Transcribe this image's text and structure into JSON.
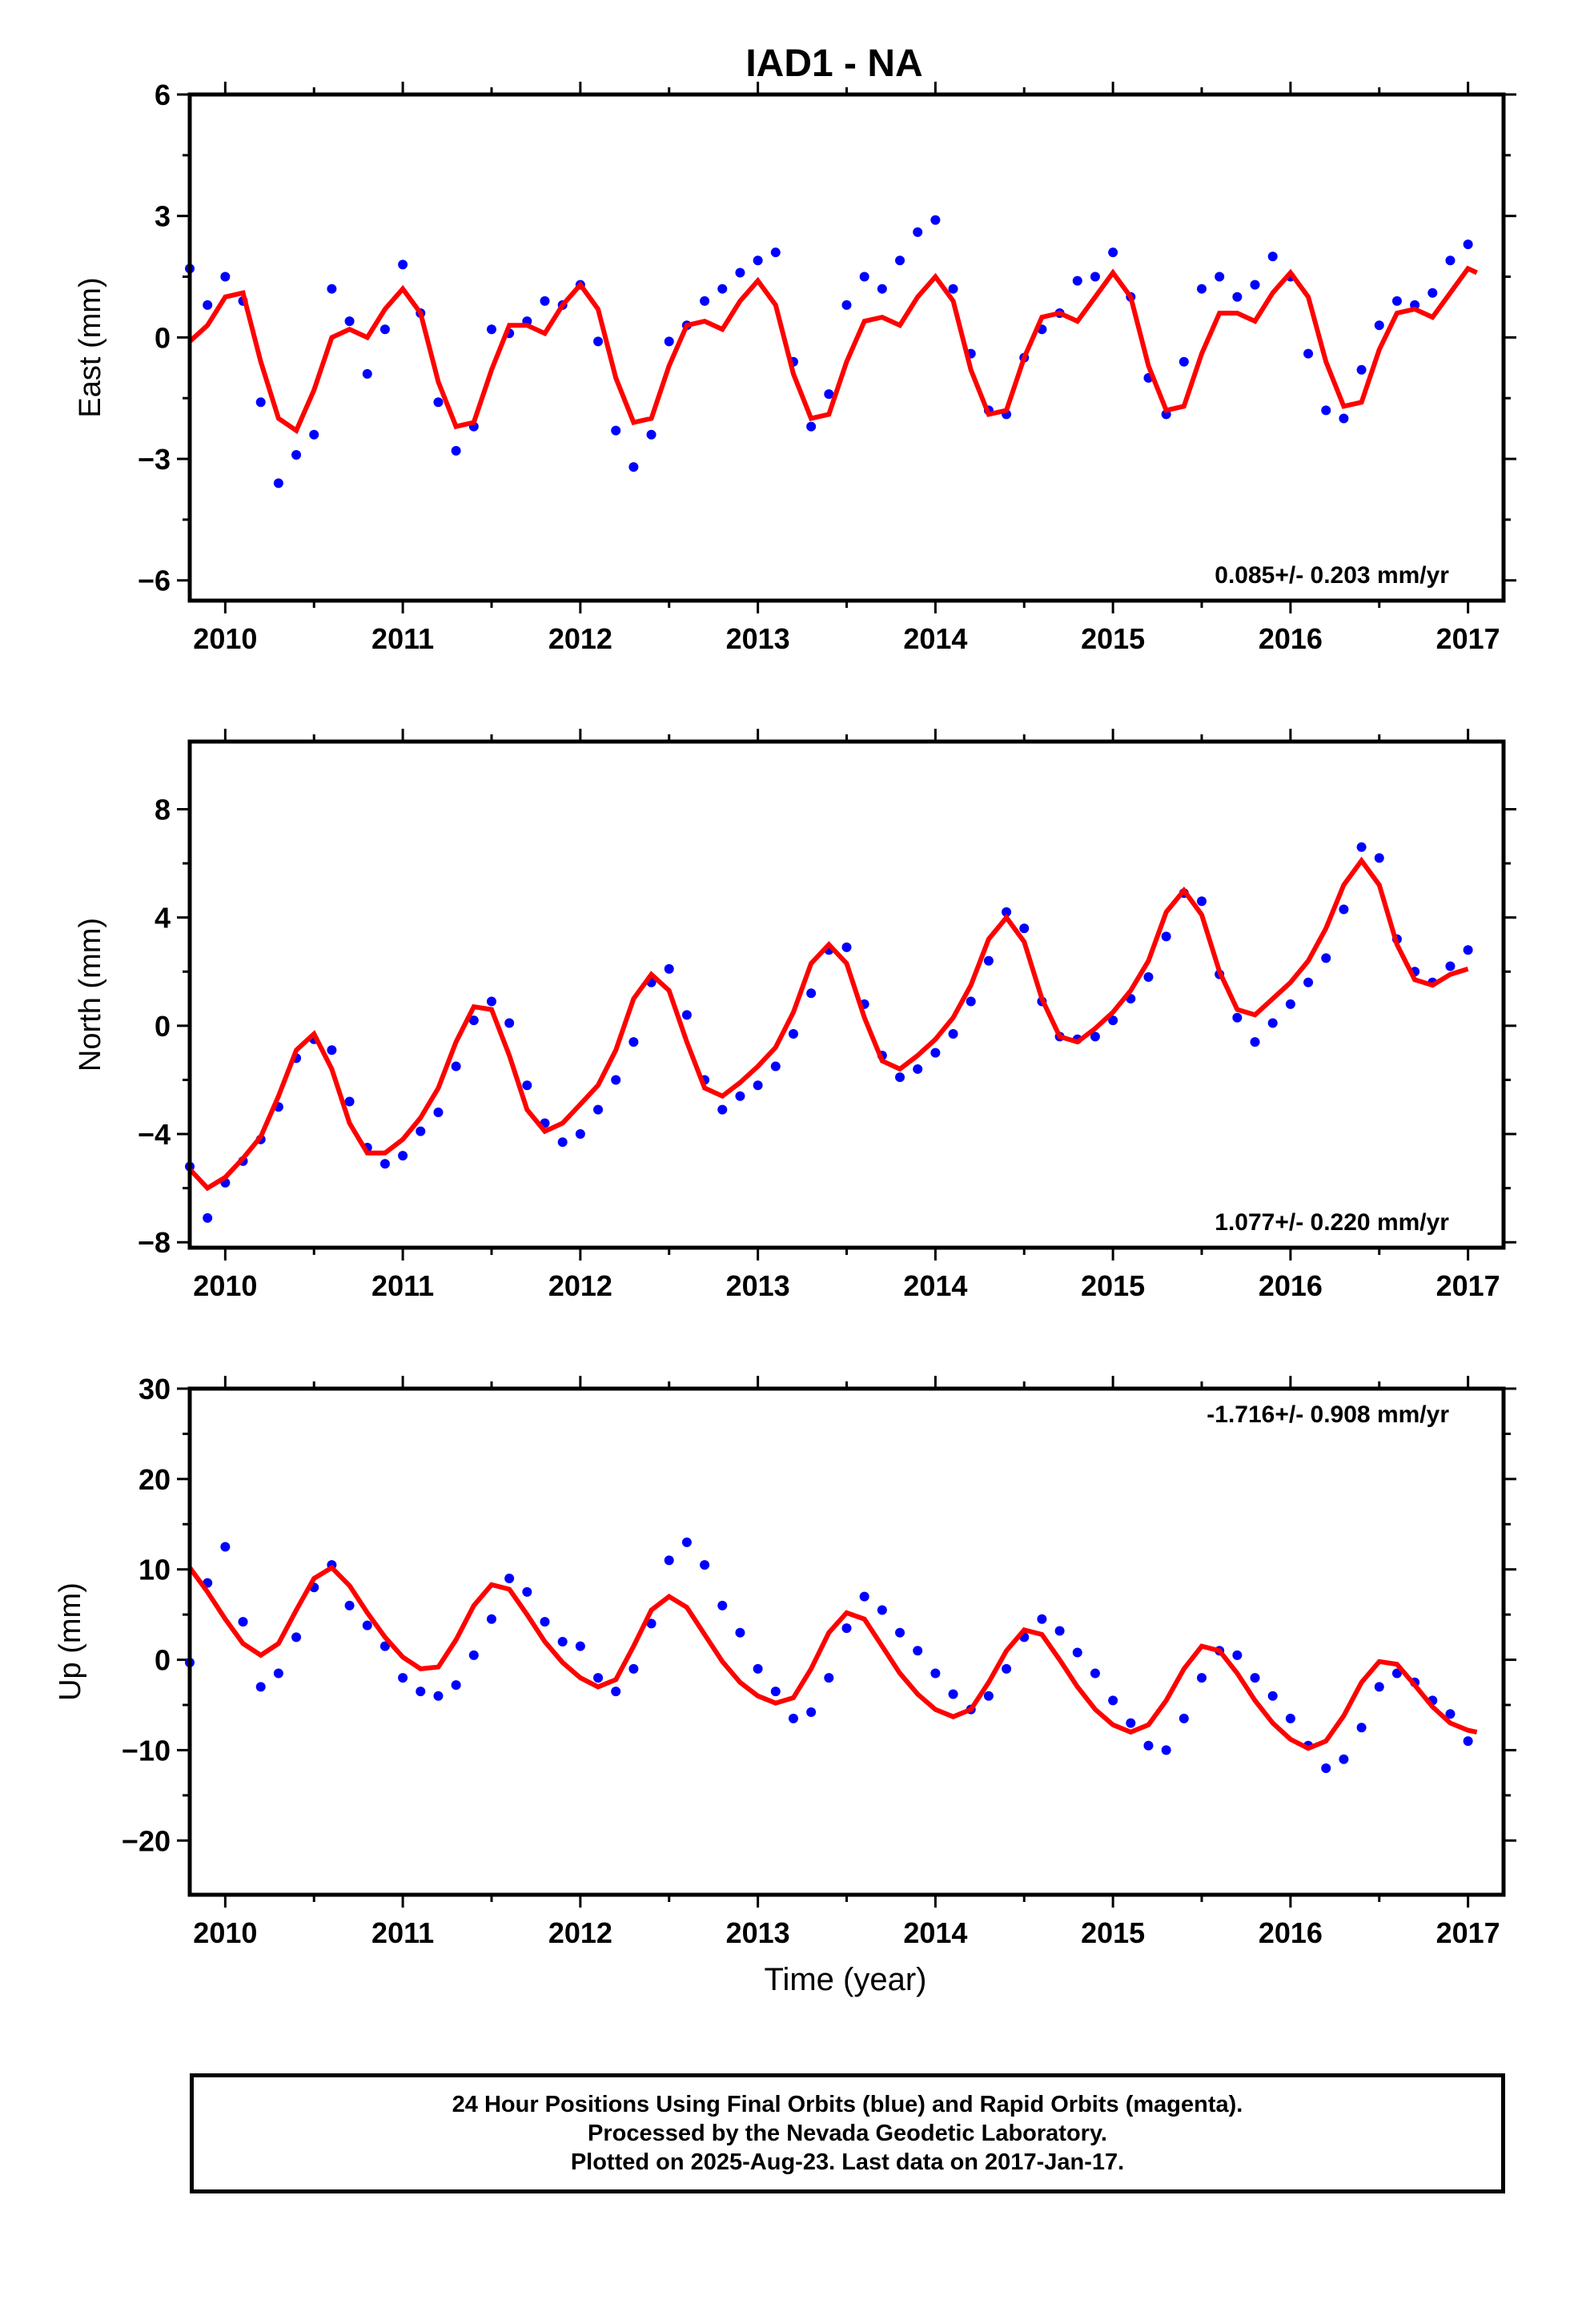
{
  "title": "IAD1 - NA",
  "colors": {
    "data": "#0000ff",
    "model": "#ff0000",
    "frame": "#000000"
  },
  "xlabel": "Time (year)",
  "x_tick_labels": [
    "2010",
    "2011",
    "2012",
    "2013",
    "2014",
    "2015",
    "2016",
    "2017"
  ],
  "caption_lines": [
    "24 Hour Positions Using Final Orbits (blue) and Rapid Orbits (magenta).",
    "Processed by the Nevada Geodetic Laboratory.",
    "Plotted on 2025-Aug-23. Last data on 2017-Jan-17."
  ],
  "chart_data": [
    {
      "type": "scatter",
      "ylabel": "East (mm)",
      "rate_label": "0.085+/- 0.203 mm/yr",
      "rate_position": "bottom-right",
      "xlim": [
        2009.8,
        2017.2
      ],
      "ylim": [
        -6.5,
        6.0
      ],
      "yticks": [
        -6,
        -3,
        0,
        3,
        6
      ],
      "ytick_labels": [
        "−6",
        "−3",
        "0",
        "3",
        "6"
      ],
      "series": [
        {
          "marker": "dot",
          "x": [
            2009.8,
            2009.9,
            2010.0,
            2010.1,
            2010.2,
            2010.3,
            2010.4,
            2010.5,
            2010.6,
            2010.7,
            2010.8,
            2010.9,
            2011.0,
            2011.1,
            2011.2,
            2011.3,
            2011.4,
            2011.5,
            2011.6,
            2011.7,
            2011.8,
            2011.9,
            2012.0,
            2012.1,
            2012.2,
            2012.3,
            2012.4,
            2012.5,
            2012.6,
            2012.7,
            2012.8,
            2012.9,
            2013.0,
            2013.1,
            2013.2,
            2013.3,
            2013.4,
            2013.5,
            2013.6,
            2013.7,
            2013.8,
            2013.9,
            2014.0,
            2014.1,
            2014.2,
            2014.3,
            2014.4,
            2014.5,
            2014.6,
            2014.7,
            2014.8,
            2014.9,
            2015.0,
            2015.1,
            2015.2,
            2015.3,
            2015.4,
            2015.5,
            2015.6,
            2015.7,
            2015.8,
            2015.9,
            2016.0,
            2016.1,
            2016.2,
            2016.3,
            2016.4,
            2016.5,
            2016.6,
            2016.7,
            2016.8,
            2016.9,
            2017.0
          ],
          "y": [
            1.7,
            0.8,
            1.5,
            0.9,
            -1.6,
            -3.6,
            -2.9,
            -2.4,
            1.2,
            0.4,
            -0.9,
            0.2,
            1.8,
            0.6,
            -1.6,
            -2.8,
            -2.2,
            0.2,
            0.1,
            0.4,
            0.9,
            0.8,
            1.3,
            -0.1,
            -2.3,
            -3.2,
            -2.4,
            -0.1,
            0.3,
            0.9,
            1.2,
            1.6,
            1.9,
            2.1,
            -0.6,
            -2.2,
            -1.4,
            0.8,
            1.5,
            1.2,
            1.9,
            2.6,
            2.9,
            1.2,
            -0.4,
            -1.8,
            -1.9,
            -0.5,
            0.2,
            0.6,
            1.4,
            1.5,
            2.1,
            1.0,
            -1.0,
            -1.9,
            -0.6,
            1.2,
            1.5,
            1.0,
            1.3,
            2.0,
            1.5,
            -0.4,
            -1.8,
            -2.0,
            -0.8,
            0.3,
            0.9,
            0.8,
            1.1,
            1.9,
            2.3
          ]
        },
        {
          "marker": "line",
          "x": [
            2009.8,
            2009.9,
            2010.0,
            2010.1,
            2010.2,
            2010.3,
            2010.4,
            2010.5,
            2010.6,
            2010.7,
            2010.8,
            2010.9,
            2011.0,
            2011.1,
            2011.2,
            2011.3,
            2011.4,
            2011.5,
            2011.6,
            2011.7,
            2011.8,
            2011.9,
            2012.0,
            2012.1,
            2012.2,
            2012.3,
            2012.4,
            2012.5,
            2012.6,
            2012.7,
            2012.8,
            2012.9,
            2013.0,
            2013.1,
            2013.2,
            2013.3,
            2013.4,
            2013.5,
            2013.6,
            2013.7,
            2013.8,
            2013.9,
            2014.0,
            2014.1,
            2014.2,
            2014.3,
            2014.4,
            2014.5,
            2014.6,
            2014.7,
            2014.8,
            2014.9,
            2015.0,
            2015.1,
            2015.2,
            2015.3,
            2015.4,
            2015.5,
            2015.6,
            2015.7,
            2015.8,
            2015.9,
            2016.0,
            2016.1,
            2016.2,
            2016.3,
            2016.4,
            2016.5,
            2016.6,
            2016.7,
            2016.8,
            2016.9,
            2017.0,
            2017.05
          ],
          "y": [
            -0.1,
            0.3,
            1.0,
            1.1,
            -0.6,
            -2.0,
            -2.3,
            -1.3,
            0.0,
            0.2,
            0.0,
            0.7,
            1.2,
            0.6,
            -1.1,
            -2.2,
            -2.1,
            -0.8,
            0.3,
            0.3,
            0.1,
            0.8,
            1.3,
            0.7,
            -1.0,
            -2.1,
            -2.0,
            -0.7,
            0.3,
            0.4,
            0.2,
            0.9,
            1.4,
            0.8,
            -0.9,
            -2.0,
            -1.9,
            -0.6,
            0.4,
            0.5,
            0.3,
            1.0,
            1.5,
            0.9,
            -0.8,
            -1.9,
            -1.8,
            -0.5,
            0.5,
            0.6,
            0.4,
            1.0,
            1.6,
            1.0,
            -0.7,
            -1.8,
            -1.7,
            -0.4,
            0.6,
            0.6,
            0.4,
            1.1,
            1.6,
            1.0,
            -0.6,
            -1.7,
            -1.6,
            -0.3,
            0.6,
            0.7,
            0.5,
            1.1,
            1.7,
            1.6
          ]
        }
      ]
    },
    {
      "type": "scatter",
      "ylabel": "North (mm)",
      "rate_label": "1.077+/- 0.220 mm/yr",
      "rate_position": "bottom-right",
      "xlim": [
        2009.8,
        2017.2
      ],
      "ylim": [
        -8.2,
        10.5
      ],
      "yticks": [
        -8,
        -4,
        0,
        4,
        8
      ],
      "ytick_labels": [
        "−8",
        "−4",
        "0",
        "4",
        "8"
      ],
      "series": [
        {
          "marker": "dot",
          "x": [
            2009.8,
            2009.9,
            2010.0,
            2010.1,
            2010.2,
            2010.3,
            2010.4,
            2010.5,
            2010.6,
            2010.7,
            2010.8,
            2010.9,
            2011.0,
            2011.1,
            2011.2,
            2011.3,
            2011.4,
            2011.5,
            2011.6,
            2011.7,
            2011.8,
            2011.9,
            2012.0,
            2012.1,
            2012.2,
            2012.3,
            2012.4,
            2012.5,
            2012.6,
            2012.7,
            2012.8,
            2012.9,
            2013.0,
            2013.1,
            2013.2,
            2013.3,
            2013.4,
            2013.5,
            2013.6,
            2013.7,
            2013.8,
            2013.9,
            2014.0,
            2014.1,
            2014.2,
            2014.3,
            2014.4,
            2014.5,
            2014.6,
            2014.7,
            2014.8,
            2014.9,
            2015.0,
            2015.1,
            2015.2,
            2015.3,
            2015.4,
            2015.5,
            2015.6,
            2015.7,
            2015.8,
            2015.9,
            2016.0,
            2016.1,
            2016.2,
            2016.3,
            2016.4,
            2016.5,
            2016.6,
            2016.7,
            2016.8,
            2016.9,
            2017.0
          ],
          "y": [
            -5.2,
            -7.1,
            -5.8,
            -5.0,
            -4.2,
            -3.0,
            -1.2,
            -0.5,
            -0.9,
            -2.8,
            -4.5,
            -5.1,
            -4.8,
            -3.9,
            -3.2,
            -1.5,
            0.2,
            0.9,
            0.1,
            -2.2,
            -3.6,
            -4.3,
            -4.0,
            -3.1,
            -2.0,
            -0.6,
            1.6,
            2.1,
            0.4,
            -2.0,
            -3.1,
            -2.6,
            -2.2,
            -1.5,
            -0.3,
            1.2,
            2.8,
            2.9,
            0.8,
            -1.1,
            -1.9,
            -1.6,
            -1.0,
            -0.3,
            0.9,
            2.4,
            4.2,
            3.6,
            0.9,
            -0.4,
            -0.5,
            -0.4,
            0.2,
            1.0,
            1.8,
            3.3,
            4.9,
            4.6,
            1.9,
            0.3,
            -0.6,
            0.1,
            0.8,
            1.6,
            2.5,
            4.3,
            6.6,
            6.2,
            3.2,
            2.0,
            1.6,
            2.2,
            2.8
          ]
        },
        {
          "marker": "line",
          "x": [
            2009.8,
            2009.9,
            2010.0,
            2010.1,
            2010.2,
            2010.3,
            2010.4,
            2010.5,
            2010.6,
            2010.7,
            2010.8,
            2010.9,
            2011.0,
            2011.1,
            2011.2,
            2011.3,
            2011.4,
            2011.5,
            2011.6,
            2011.7,
            2011.8,
            2011.9,
            2012.0,
            2012.1,
            2012.2,
            2012.3,
            2012.4,
            2012.5,
            2012.6,
            2012.7,
            2012.8,
            2012.9,
            2013.0,
            2013.1,
            2013.2,
            2013.3,
            2013.4,
            2013.5,
            2013.6,
            2013.7,
            2013.8,
            2013.9,
            2014.0,
            2014.1,
            2014.2,
            2014.3,
            2014.4,
            2014.5,
            2014.6,
            2014.7,
            2014.8,
            2014.9,
            2015.0,
            2015.1,
            2015.2,
            2015.3,
            2015.4,
            2015.5,
            2015.6,
            2015.7,
            2015.8,
            2015.9,
            2016.0,
            2016.1,
            2016.2,
            2016.3,
            2016.4,
            2016.5,
            2016.6,
            2016.7,
            2016.8,
            2016.9,
            2017.0
          ],
          "y": [
            -5.3,
            -6.0,
            -5.6,
            -4.9,
            -4.1,
            -2.6,
            -0.9,
            -0.3,
            -1.6,
            -3.6,
            -4.7,
            -4.7,
            -4.2,
            -3.4,
            -2.3,
            -0.6,
            0.7,
            0.6,
            -1.1,
            -3.1,
            -3.9,
            -3.6,
            -2.9,
            -2.2,
            -0.9,
            1.0,
            1.9,
            1.3,
            -0.6,
            -2.3,
            -2.6,
            -2.1,
            -1.5,
            -0.8,
            0.5,
            2.3,
            3.0,
            2.3,
            0.3,
            -1.3,
            -1.6,
            -1.1,
            -0.5,
            0.3,
            1.5,
            3.2,
            4.0,
            3.1,
            1.0,
            -0.4,
            -0.6,
            -0.1,
            0.5,
            1.3,
            2.4,
            4.2,
            5.0,
            4.1,
            2.0,
            0.6,
            0.4,
            1.0,
            1.6,
            2.4,
            3.6,
            5.2,
            6.1,
            5.2,
            3.0,
            1.7,
            1.5,
            1.9,
            2.1
          ]
        }
      ]
    },
    {
      "type": "scatter",
      "ylabel": "Up (mm)",
      "rate_label": "-1.716+/- 0.908 mm/yr",
      "rate_position": "top-right",
      "xlim": [
        2009.8,
        2017.2
      ],
      "ylim": [
        -26,
        30
      ],
      "yticks": [
        -20,
        -10,
        0,
        10,
        20,
        30
      ],
      "ytick_labels": [
        "−20",
        "−10",
        "0",
        "10",
        "20",
        "30"
      ],
      "series": [
        {
          "marker": "dot",
          "x": [
            2009.8,
            2009.9,
            2010.0,
            2010.1,
            2010.2,
            2010.3,
            2010.4,
            2010.5,
            2010.6,
            2010.7,
            2010.8,
            2010.9,
            2011.0,
            2011.1,
            2011.2,
            2011.3,
            2011.4,
            2011.5,
            2011.6,
            2011.7,
            2011.8,
            2011.9,
            2012.0,
            2012.1,
            2012.2,
            2012.3,
            2012.4,
            2012.5,
            2012.6,
            2012.7,
            2012.8,
            2012.9,
            2013.0,
            2013.1,
            2013.2,
            2013.3,
            2013.4,
            2013.5,
            2013.6,
            2013.7,
            2013.8,
            2013.9,
            2014.0,
            2014.1,
            2014.2,
            2014.3,
            2014.4,
            2014.5,
            2014.6,
            2014.7,
            2014.8,
            2014.9,
            2015.0,
            2015.1,
            2015.2,
            2015.3,
            2015.4,
            2015.5,
            2015.6,
            2015.7,
            2015.8,
            2015.9,
            2016.0,
            2016.1,
            2016.2,
            2016.3,
            2016.4,
            2016.5,
            2016.6,
            2016.7,
            2016.8,
            2016.9,
            2017.0
          ],
          "y": [
            -0.3,
            8.5,
            12.5,
            4.2,
            -3.0,
            -1.5,
            2.5,
            8.0,
            10.5,
            6.0,
            3.8,
            1.5,
            -2.0,
            -3.5,
            -4.0,
            -2.8,
            0.5,
            4.5,
            9.0,
            7.5,
            4.2,
            2.0,
            1.5,
            -2.0,
            -3.5,
            -1.0,
            4.0,
            11.0,
            13.0,
            10.5,
            6.0,
            3.0,
            -1.0,
            -3.5,
            -6.5,
            -5.8,
            -2.0,
            3.5,
            7.0,
            5.5,
            3.0,
            1.0,
            -1.5,
            -3.8,
            -5.5,
            -4.0,
            -1.0,
            2.5,
            4.5,
            3.2,
            0.8,
            -1.5,
            -4.5,
            -7.0,
            -9.5,
            -10.0,
            -6.5,
            -2.0,
            1.0,
            0.5,
            -2.0,
            -4.0,
            -6.5,
            -9.5,
            -12.0,
            -11.0,
            -7.5,
            -3.0,
            -1.5,
            -2.5,
            -4.5,
            -6.0,
            -9.0
          ]
        },
        {
          "marker": "line",
          "x": [
            2009.8,
            2009.9,
            2010.0,
            2010.1,
            2010.2,
            2010.3,
            2010.4,
            2010.5,
            2010.6,
            2010.7,
            2010.8,
            2010.9,
            2011.0,
            2011.1,
            2011.2,
            2011.3,
            2011.4,
            2011.5,
            2011.6,
            2011.7,
            2011.8,
            2011.9,
            2012.0,
            2012.1,
            2012.2,
            2012.3,
            2012.4,
            2012.5,
            2012.6,
            2012.7,
            2012.8,
            2012.9,
            2013.0,
            2013.1,
            2013.2,
            2013.3,
            2013.4,
            2013.5,
            2013.6,
            2013.7,
            2013.8,
            2013.9,
            2014.0,
            2014.1,
            2014.2,
            2014.3,
            2014.4,
            2014.5,
            2014.6,
            2014.7,
            2014.8,
            2014.9,
            2015.0,
            2015.1,
            2015.2,
            2015.3,
            2015.4,
            2015.5,
            2015.6,
            2015.7,
            2015.8,
            2015.9,
            2016.0,
            2016.1,
            2016.2,
            2016.3,
            2016.4,
            2016.5,
            2016.6,
            2016.7,
            2016.8,
            2016.9,
            2017.0,
            2017.05
          ],
          "y": [
            10.2,
            7.5,
            4.5,
            1.8,
            0.5,
            1.8,
            5.5,
            9.0,
            10.2,
            8.2,
            5.2,
            2.5,
            0.3,
            -1.0,
            -0.8,
            2.2,
            6.0,
            8.3,
            7.8,
            5.0,
            2.0,
            -0.3,
            -2.0,
            -3.0,
            -2.2,
            1.5,
            5.5,
            7.0,
            5.8,
            2.8,
            -0.2,
            -2.5,
            -4.0,
            -4.8,
            -4.2,
            -1.0,
            3.0,
            5.2,
            4.5,
            1.5,
            -1.5,
            -3.8,
            -5.5,
            -6.3,
            -5.5,
            -2.5,
            1.0,
            3.3,
            2.8,
            0.0,
            -3.0,
            -5.5,
            -7.2,
            -8.0,
            -7.2,
            -4.5,
            -1.0,
            1.5,
            1.0,
            -1.5,
            -4.5,
            -7.0,
            -8.8,
            -9.8,
            -9.0,
            -6.2,
            -2.5,
            -0.2,
            -0.5,
            -2.8,
            -5.2,
            -7.0,
            -7.8,
            -8.0
          ]
        }
      ]
    }
  ]
}
